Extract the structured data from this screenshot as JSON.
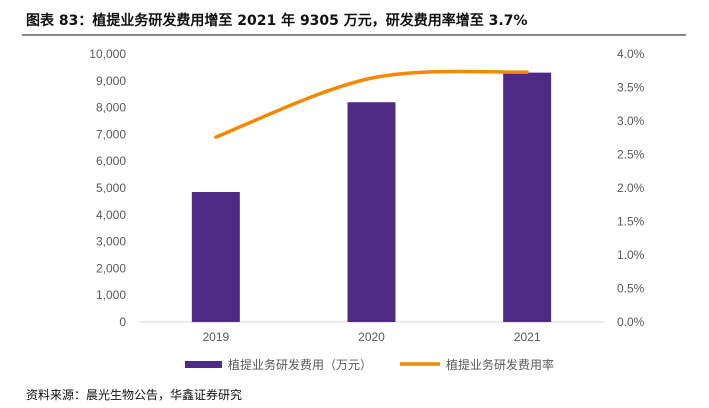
{
  "title": "图表 83：植提业务研发费用增至 2021 年 9305 万元，研发费用率增至 3.7%",
  "source": "资料来源：晨光生物公告，华鑫证券研究",
  "chart_data": {
    "type": "bar",
    "categories": [
      "2019",
      "2020",
      "2021"
    ],
    "series": [
      {
        "name": "植提业务研发费用（万元）",
        "type": "bar",
        "axis": "left",
        "color": "#4E2A84",
        "values": [
          4850,
          8200,
          9305
        ]
      },
      {
        "name": "植提业务研发费用率",
        "type": "line",
        "axis": "right",
        "color": "#F28A00",
        "values": [
          2.76,
          3.64,
          3.73
        ]
      }
    ],
    "ylim": [
      0,
      10000
    ],
    "yticks": [
      "0",
      "1,000",
      "2,000",
      "3,000",
      "4,000",
      "5,000",
      "6,000",
      "7,000",
      "8,000",
      "9,000",
      "10,000"
    ],
    "y2lim": [
      0,
      4
    ],
    "y2ticks": [
      "0.0%",
      "0.5%",
      "1.0%",
      "1.5%",
      "2.0%",
      "2.5%",
      "3.0%",
      "3.5%",
      "4.0%"
    ],
    "grid": false,
    "legend": "bottom"
  }
}
